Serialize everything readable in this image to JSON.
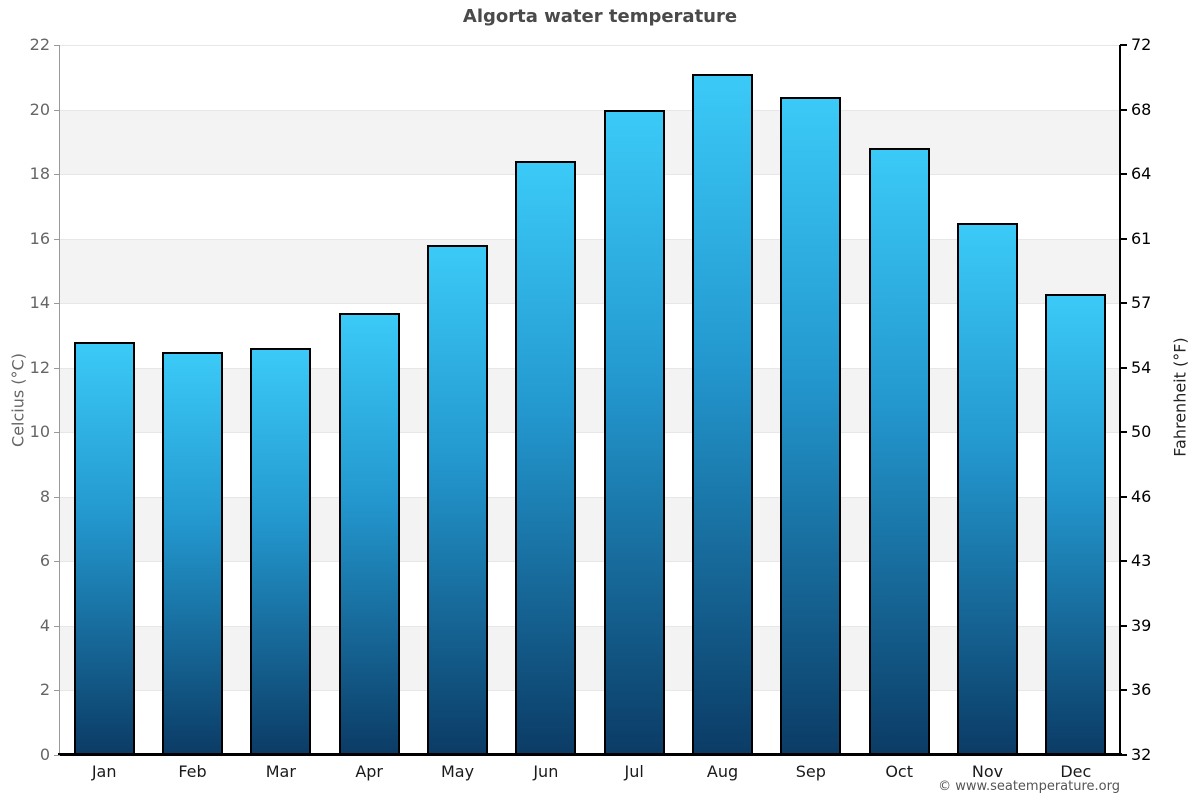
{
  "title": "Algorta water temperature",
  "footer": "© www.seatemperature.org",
  "chart_data": {
    "type": "bar",
    "title": "Algorta water temperature",
    "categories": [
      "Jan",
      "Feb",
      "Mar",
      "Apr",
      "May",
      "Jun",
      "Jul",
      "Aug",
      "Sep",
      "Oct",
      "Nov",
      "Dec"
    ],
    "values": [
      12.8,
      12.5,
      12.6,
      13.7,
      15.8,
      18.4,
      20,
      21.1,
      20.4,
      18.8,
      16.5,
      14.3
    ],
    "ylabel_left": "Celcius (°C)",
    "ylabel_right": "Fahrenheit (°F)",
    "yticks_left": [
      0,
      2,
      4,
      6,
      8,
      10,
      12,
      14,
      16,
      18,
      20,
      22
    ],
    "yticks_right": [
      32,
      36,
      39,
      43,
      46,
      50,
      54,
      57,
      61,
      64,
      68,
      72
    ],
    "ylim": [
      0,
      22
    ],
    "xlabel": "",
    "legend": "none",
    "grid": "alternating horizontal bands every 2°C",
    "colors": {
      "bar_gradient_top": "#3bcaf7",
      "bar_gradient_mid": "#2398cf",
      "bar_gradient_bottom": "#0b3c66",
      "bar_border": "#000000",
      "band_shade": "#f3f3f3",
      "gridline": "#e7e7e7",
      "axis_left": "#999999",
      "axis_right": "#000000",
      "axis_bottom": "#000000",
      "title_text": "#4a4a4a",
      "tick_left_text": "#666666",
      "tick_right_text": "#000000",
      "month_text": "#1a1a1a",
      "footer_text": "#555555"
    }
  }
}
